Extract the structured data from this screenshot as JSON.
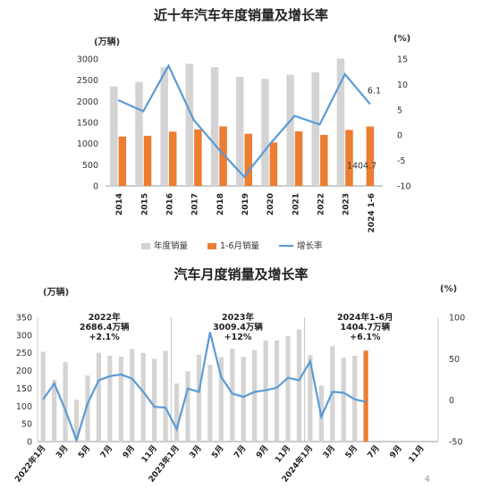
{
  "page_number": "4",
  "colors": {
    "bar_gray": "#d4d4d4",
    "bar_orange": "#ed7d31",
    "line_blue": "#5b9bd5",
    "axis": "#999999"
  },
  "chart_data": [
    {
      "type": "bar+line",
      "title": "近十年汽车年度销量及增长率",
      "left_unit": "(万辆)",
      "right_unit": "(%)",
      "categories": [
        "2014",
        "2015",
        "2016",
        "2017",
        "2018",
        "2019",
        "2020",
        "2021",
        "2022",
        "2023",
        "2024 1-6"
      ],
      "series": [
        {
          "name": "年度销量",
          "kind": "bar",
          "values": [
            2349,
            2460,
            2803,
            2888,
            2808,
            2576,
            2531,
            2627,
            2686,
            3009,
            null
          ]
        },
        {
          "name": "1-6月销量",
          "kind": "bar",
          "values": [
            1168,
            1185,
            1283,
            1336,
            1406,
            1232,
            1026,
            1289,
            1206,
            1323,
            1404.7
          ]
        },
        {
          "name": "增长率",
          "kind": "line",
          "axis": "right",
          "values": [
            6.9,
            4.7,
            13.7,
            3.0,
            -2.8,
            -8.2,
            -1.9,
            3.8,
            2.1,
            12.0,
            6.1
          ]
        }
      ],
      "ylim_left": [
        0,
        3000
      ],
      "yticks_left": [
        "0",
        "500",
        "1000",
        "1500",
        "2000",
        "2500",
        "3000"
      ],
      "ylim_right": [
        -10,
        15
      ],
      "yticks_right": [
        "-10",
        "-5",
        "0",
        "5",
        "10",
        "15"
      ],
      "annotations": [
        "6.1",
        "1404.7"
      ],
      "legend": [
        "年度销量",
        "1-6月销量",
        "增长率"
      ],
      "legend_position": "bottom"
    },
    {
      "type": "bar+line",
      "title": "汽车月度销量及增长率",
      "left_unit": "(万辆)",
      "right_unit": "(%)",
      "x_tick_labels": [
        "2022年1月",
        "3月",
        "5月",
        "7月",
        "9月",
        "11月",
        "2023年1月",
        "3月",
        "5月",
        "7月",
        "9月",
        "11月",
        "2024年1月",
        "3月",
        "5月",
        "7月",
        "9月",
        "11月"
      ],
      "bars": [
        253,
        174,
        224,
        118,
        186,
        250,
        242,
        239,
        261,
        250,
        233,
        256,
        164,
        198,
        245,
        216,
        238,
        262,
        239,
        258,
        285,
        285,
        297,
        316,
        244,
        158,
        269,
        236,
        242,
        256
      ],
      "highlight_bar_index": 29,
      "growth": [
        1,
        20,
        -12,
        -48,
        -4,
        24,
        29,
        31,
        26,
        10,
        -8,
        -9,
        -35,
        14,
        10,
        82,
        28,
        8,
        4,
        10,
        12,
        15,
        27,
        24,
        47,
        -20,
        10,
        9,
        1,
        -2
      ],
      "ylim_left": [
        0,
        350
      ],
      "yticks_left": [
        "0",
        "50",
        "100",
        "150",
        "200",
        "250",
        "300",
        "350"
      ],
      "ylim_right": [
        -50,
        100
      ],
      "yticks_right": [
        "-50",
        "0",
        "50",
        "100"
      ],
      "annotations": [
        {
          "lines": [
            "2022年",
            "2686.4万辆",
            "+2.1%"
          ]
        },
        {
          "lines": [
            "2023年",
            "3009.4万辆",
            "+12%"
          ]
        },
        {
          "lines": [
            "2024年1-6月",
            "1404.7万辆",
            "+6.1%"
          ]
        }
      ]
    }
  ]
}
